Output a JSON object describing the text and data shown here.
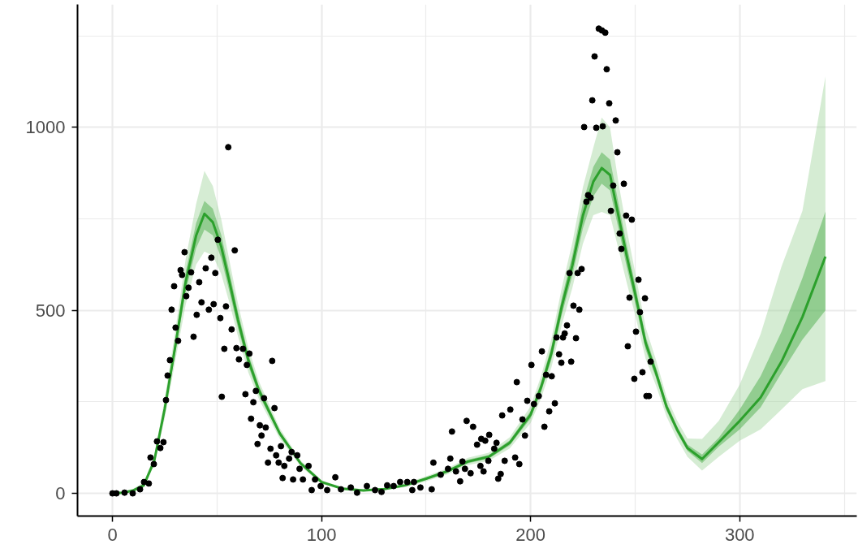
{
  "chart_data": {
    "type": "scatter",
    "xlim": [
      -16.7,
      356
    ],
    "ylim": [
      -62,
      1336
    ],
    "xticks": [
      0,
      100,
      200,
      300,
      {
        "value": 50,
        "label": null
      },
      {
        "value": 150,
        "label": null
      },
      {
        "value": 250,
        "label": null
      },
      {
        "value": 350,
        "label": null
      }
    ],
    "yticks": [
      0,
      500,
      1000,
      {
        "value": 250,
        "label": null
      },
      {
        "value": 750,
        "label": null
      },
      {
        "value": 1250,
        "label": null
      }
    ],
    "grid": true,
    "line_style": "solid",
    "series": [
      {
        "type": "scatter",
        "marker": "circle",
        "color": "#000000",
        "x": [
          0,
          1.9,
          5.8,
          9.7,
          13.2,
          15.1,
          17.4,
          18.2,
          19.8,
          21.3,
          22.9,
          24.4,
          25.6,
          26.4,
          27.5,
          28.3,
          29.5,
          30.2,
          31.4,
          32.6,
          33.3,
          34.5,
          35.3,
          36.4,
          37.6,
          38.8,
          40.3,
          41.5,
          42.6,
          44.6,
          46.1,
          47.3,
          48.4,
          49.2,
          50.4,
          51.6,
          52.3,
          53.5,
          54.3,
          55.4,
          57,
          58.5,
          59.3,
          60.5,
          62.4,
          63.6,
          64.3,
          65.5,
          66.3,
          67.4,
          68.6,
          69.4,
          70.5,
          71.3,
          72.5,
          73.3,
          74.4,
          75.6,
          76.4,
          77.5,
          78.3,
          79.5,
          80.6,
          81.4,
          82.2,
          84.5,
          85.7,
          86.4,
          88.4,
          89.5,
          91.1,
          93.8,
          95.3,
          96.9,
          99.6,
          102.7,
          106.6,
          109.3,
          114,
          117,
          121.7,
          125.6,
          128.7,
          131.4,
          134.5,
          137.6,
          141,
          143.4,
          144.2,
          147.3,
          152.7,
          153.5,
          157,
          160.5,
          161.6,
          162.4,
          164.3,
          166.3,
          167.4,
          168.6,
          169.4,
          171.3,
          172.5,
          174.4,
          176,
          176.4,
          177.5,
          178.3,
          179.8,
          180.2,
          182.6,
          183.7,
          184.5,
          185.7,
          186.4,
          187.6,
          190.3,
          192.6,
          193.4,
          194.6,
          196.1,
          197.3,
          198.4,
          200.4,
          201.6,
          203.9,
          205.4,
          206.6,
          207.4,
          208.9,
          210.1,
          211.6,
          212.4,
          213.6,
          214.7,
          215.5,
          216.3,
          217.4,
          218.6,
          219.4,
          220.5,
          221.7,
          222.5,
          223.3,
          224.4,
          225.6,
          226.7,
          227.5,
          228.7,
          229.5,
          230.6,
          231.4,
          232.6,
          234.1,
          234.5,
          235.7,
          236.4,
          237.6,
          238.4,
          239.5,
          240.7,
          241.5,
          242.6,
          243.4,
          244.6,
          245.7,
          246.5,
          247.3,
          248.4,
          249.6,
          250.4,
          251.6,
          252.3,
          253.5,
          254.7,
          255.4,
          256.6,
          257.4
        ],
        "values": [
          0,
          0,
          2,
          0,
          11,
          31,
          27,
          98,
          80,
          142,
          124,
          140,
          255,
          322,
          364,
          502,
          566,
          453,
          417,
          610,
          597,
          659,
          539,
          562,
          604,
          428,
          488,
          577,
          522,
          615,
          502,
          644,
          517,
          602,
          693,
          479,
          264,
          395,
          511,
          946,
          448,
          664,
          397,
          366,
          395,
          271,
          351,
          382,
          204,
          249,
          280,
          135,
          186,
          158,
          260,
          180,
          84,
          122,
          362,
          233,
          104,
          84,
          129,
          42,
          75,
          95,
          113,
          38,
          104,
          67,
          38,
          75,
          9,
          38,
          20,
          9,
          44,
          11,
          16,
          2,
          20,
          9,
          4,
          22,
          20,
          31,
          31,
          9,
          31,
          16,
          11,
          84,
          51,
          67,
          95,
          169,
          60,
          33,
          87,
          67,
          198,
          55,
          182,
          133,
          75,
          149,
          60,
          144,
          89,
          160,
          122,
          138,
          40,
          53,
          213,
          89,
          229,
          98,
          304,
          80,
          202,
          158,
          253,
          351,
          244,
          266,
          388,
          182,
          324,
          224,
          320,
          246,
          426,
          380,
          357,
          426,
          437,
          459,
          602,
          360,
          513,
          424,
          602,
          502,
          613,
          1001,
          797,
          815,
          808,
          1074,
          1194,
          999,
          1270,
          1265,
          1003,
          1259,
          1159,
          1066,
          772,
          841,
          1019,
          932,
          710,
          668,
          846,
          759,
          402,
          535,
          748,
          313,
          442,
          584,
          495,
          331,
          533,
          266,
          266,
          360
        ]
      },
      {
        "type": "line",
        "color": "#96cf91",
        "x": [
          0,
          5,
          10,
          15,
          20,
          25,
          30,
          35,
          40,
          44,
          48,
          52,
          56,
          60,
          65,
          70,
          80,
          90,
          100,
          110,
          120,
          130,
          140,
          150,
          160,
          170,
          180,
          190,
          200,
          205,
          210,
          215,
          220,
          225,
          230,
          234,
          238,
          242,
          246,
          250,
          255,
          260,
          265,
          270,
          275,
          282,
          290,
          300,
          310,
          320,
          330,
          341
        ],
        "values": [
          null,
          null,
          null,
          null,
          null,
          null,
          null,
          null,
          null,
          null,
          null,
          null,
          null,
          null,
          null,
          null,
          null,
          null,
          null,
          null,
          null,
          null,
          null,
          null,
          null,
          null,
          null,
          null,
          null,
          null,
          null,
          null,
          null,
          null,
          null,
          null,
          null,
          null,
          null,
          null,
          null,
          null,
          null,
          null,
          null,
          null,
          null,
          null,
          null,
          null,
          null,
          null
        ],
        "lower": [
          0,
          0,
          4,
          15,
          78,
          205,
          360,
          515,
          625,
          661,
          650,
          600,
          520,
          430,
          330,
          258,
          150,
          74,
          26,
          10,
          5,
          9,
          17,
          33,
          52,
          77,
          89,
          123,
          192,
          260,
          345,
          462,
          562,
          682,
          760,
          769,
          760,
          668,
          575,
          488,
          368,
          294,
          210,
          150,
          100,
          62,
          100,
          144,
          175,
          229,
          285,
          307
        ],
        "upper": [
          4,
          5,
          13,
          30,
          101,
          258,
          442,
          640,
          790,
          881,
          840,
          750,
          635,
          520,
          398,
          307,
          178,
          90,
          36,
          16,
          11,
          15,
          27,
          47,
          68,
          97,
          111,
          153,
          238,
          320,
          423,
          564,
          686,
          836,
          945,
          1027,
          1000,
          850,
          721,
          604,
          454,
          364,
          264,
          200,
          150,
          149,
          198,
          297,
          435,
          620,
          772,
          1139
        ]
      },
      {
        "type": "line",
        "color": "#2ca02c",
        "x": [
          0,
          5,
          10,
          15,
          20,
          25,
          30,
          35,
          40,
          44,
          48,
          52,
          56,
          60,
          65,
          70,
          80,
          90,
          100,
          110,
          120,
          130,
          140,
          150,
          160,
          170,
          180,
          190,
          200,
          205,
          210,
          215,
          220,
          225,
          230,
          234,
          238,
          242,
          246,
          250,
          255,
          260,
          265,
          270,
          275,
          282,
          290,
          300,
          310,
          320,
          330,
          341
        ],
        "values": [
          0,
          2,
          8,
          22,
          89,
          231,
          400,
          577,
          704,
          764,
          741,
          675,
          577,
          475,
          364,
          282,
          164,
          82,
          31,
          13,
          8,
          12,
          22,
          40,
          60,
          87,
          100,
          138,
          215,
          290,
          384,
          513,
          624,
          759,
          852,
          889,
          870,
          759,
          648,
          546,
          411,
          329,
          237,
          175,
          124,
          94,
          140,
          198,
          262,
          360,
          482,
          647
        ],
        "lower": [
          0,
          1,
          6,
          19,
          84,
          220,
          382,
          550,
          670,
          721,
          705,
          643,
          550,
          453,
          348,
          270,
          157,
          78,
          29,
          12,
          7,
          11,
          20,
          37,
          56,
          82,
          95,
          131,
          205,
          277,
          366,
          490,
          596,
          724,
          812,
          846,
          828,
          724,
          618,
          521,
          393,
          315,
          226,
          166,
          116,
          83,
          128,
          175,
          235,
          329,
          420,
          500
        ],
        "upper": [
          2,
          3,
          10,
          25,
          94,
          242,
          418,
          604,
          738,
          799,
          778,
          707,
          604,
          497,
          380,
          294,
          171,
          86,
          33,
          14,
          9,
          13,
          24,
          43,
          64,
          92,
          105,
          145,
          225,
          303,
          402,
          536,
          652,
          794,
          892,
          932,
          912,
          794,
          678,
          571,
          429,
          343,
          248,
          184,
          133,
          106,
          152,
          229,
          320,
          442,
          588,
          770
        ]
      }
    ]
  }
}
